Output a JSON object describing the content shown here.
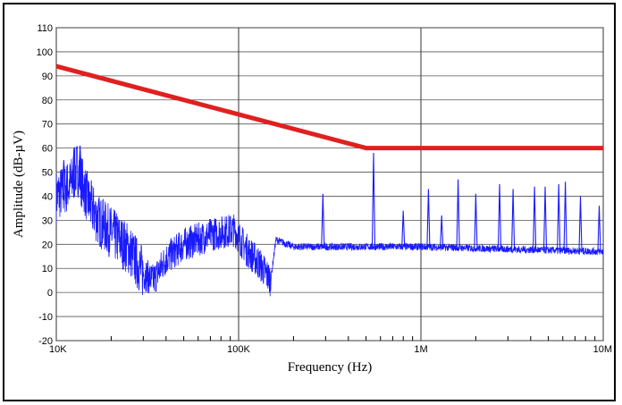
{
  "chart_data": {
    "type": "line",
    "title": "",
    "xlabel": "Frequency (Hz)",
    "ylabel": "Amplitude (dB-µV)",
    "x_scale": "log",
    "xlim": [
      10000,
      10000000
    ],
    "ylim": [
      -20,
      110
    ],
    "grid": true,
    "x_ticks": [
      {
        "value": 10000,
        "label": "10K"
      },
      {
        "value": 100000,
        "label": "100K"
      },
      {
        "value": 1000000,
        "label": "1M"
      },
      {
        "value": 10000000,
        "label": "10M"
      }
    ],
    "y_ticks": [
      110,
      100,
      90,
      80,
      70,
      60,
      50,
      40,
      30,
      20,
      10,
      0,
      -10,
      -20
    ],
    "series": [
      {
        "role": "limit",
        "color": "#e02020",
        "points": [
          [
            10000,
            94
          ],
          [
            500000,
            60
          ],
          [
            10000000,
            60
          ]
        ]
      },
      {
        "role": "measured-emissions",
        "color": "#1a1aff",
        "noise_floor_points": [
          [
            10000,
            40
          ],
          [
            12000,
            45
          ],
          [
            13000,
            52
          ],
          [
            15000,
            38
          ],
          [
            17000,
            30
          ],
          [
            20000,
            25
          ],
          [
            25000,
            18
          ],
          [
            30000,
            8
          ],
          [
            34000,
            5
          ],
          [
            40000,
            14
          ],
          [
            50000,
            20
          ],
          [
            60000,
            22
          ],
          [
            70000,
            24
          ],
          [
            80000,
            25
          ],
          [
            95000,
            26
          ],
          [
            110000,
            18
          ],
          [
            130000,
            12
          ],
          [
            150000,
            5
          ],
          [
            160000,
            22
          ],
          [
            200000,
            19
          ],
          [
            300000,
            19
          ],
          [
            500000,
            19
          ],
          [
            1000000,
            19
          ],
          [
            3000000,
            18
          ],
          [
            10000000,
            17
          ]
        ],
        "peaks": [
          [
            11000,
            55
          ],
          [
            12500,
            60
          ],
          [
            13500,
            61
          ],
          [
            290000,
            41
          ],
          [
            550000,
            58
          ],
          [
            800000,
            34
          ],
          [
            1100000,
            43
          ],
          [
            1300000,
            32
          ],
          [
            1600000,
            47
          ],
          [
            2000000,
            41
          ],
          [
            2700000,
            45
          ],
          [
            3200000,
            43
          ],
          [
            4200000,
            44
          ],
          [
            4800000,
            44
          ],
          [
            5700000,
            45
          ],
          [
            6200000,
            46
          ],
          [
            7500000,
            40
          ],
          [
            9500000,
            36
          ]
        ]
      }
    ]
  }
}
